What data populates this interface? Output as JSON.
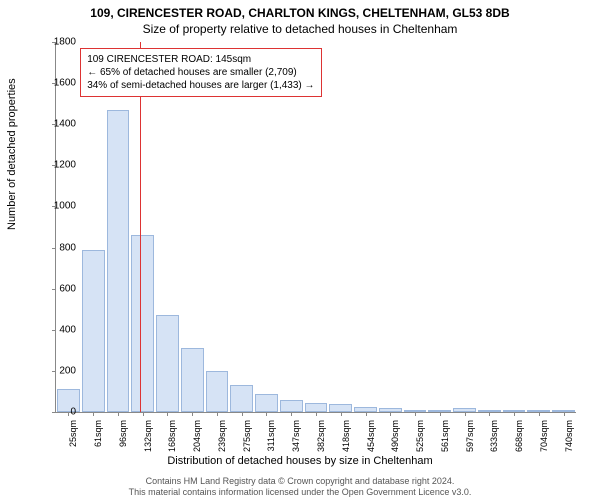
{
  "title_line1": "109, CIRENCESTER ROAD, CHARLTON KINGS, CHELTENHAM, GL53 8DB",
  "title_line2": "Size of property relative to detached houses in Cheltenham",
  "y_axis_label": "Number of detached properties",
  "x_axis_label": "Distribution of detached houses by size in Cheltenham",
  "footer_line1": "Contains HM Land Registry data © Crown copyright and database right 2024.",
  "footer_line2": "This material contains information licensed under the Open Government Licence v3.0.",
  "chart": {
    "type": "histogram",
    "ylim": [
      0,
      1800
    ],
    "ytick_step": 200,
    "bar_fill": "#d6e3f5",
    "bar_stroke": "#9db8dd",
    "background": "#ffffff",
    "axis_color": "#888888",
    "reference_line": {
      "x_category_index": 3.4,
      "color": "#dd3333"
    },
    "annotation": {
      "border_color": "#dd3333",
      "line1": "109 CIRENCESTER ROAD: 145sqm",
      "line2": "← 65% of detached houses are smaller (2,709)",
      "line3": "34% of semi-detached houses are larger (1,433) →"
    },
    "categories": [
      "25sqm",
      "61sqm",
      "96sqm",
      "132sqm",
      "168sqm",
      "204sqm",
      "239sqm",
      "275sqm",
      "311sqm",
      "347sqm",
      "382sqm",
      "418sqm",
      "454sqm",
      "490sqm",
      "525sqm",
      "561sqm",
      "597sqm",
      "633sqm",
      "668sqm",
      "704sqm",
      "740sqm"
    ],
    "values": [
      110,
      790,
      1470,
      860,
      470,
      310,
      200,
      130,
      90,
      60,
      45,
      40,
      25,
      20,
      10,
      10,
      18,
      6,
      4,
      4,
      4
    ]
  }
}
